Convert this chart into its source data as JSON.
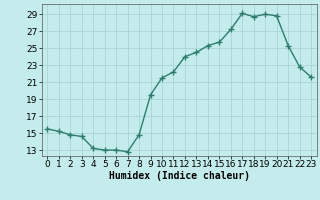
{
  "x": [
    0,
    1,
    2,
    3,
    4,
    5,
    6,
    7,
    8,
    9,
    10,
    11,
    12,
    13,
    14,
    15,
    16,
    17,
    18,
    19,
    20,
    21,
    22,
    23
  ],
  "y": [
    15.5,
    15.2,
    14.8,
    14.6,
    13.2,
    13.0,
    13.0,
    12.8,
    14.8,
    19.5,
    21.5,
    22.2,
    24.0,
    24.5,
    25.3,
    25.7,
    27.2,
    29.1,
    28.7,
    29.0,
    28.8,
    25.3,
    22.8,
    21.6
  ],
  "line_color": "#2e7d6e",
  "marker": "+",
  "markersize": 4,
  "linewidth": 1.0,
  "bg_color": "#c5ecec",
  "grid_color": "#aad4d4",
  "xlabel": "Humidex (Indice chaleur)",
  "xlabel_fontsize": 7,
  "ylabel_ticks": [
    13,
    15,
    17,
    19,
    21,
    23,
    25,
    27,
    29
  ],
  "xlim": [
    -0.5,
    23.5
  ],
  "ylim": [
    12.3,
    30.2
  ],
  "tick_fontsize": 6.5,
  "markeredgewidth": 1.0
}
